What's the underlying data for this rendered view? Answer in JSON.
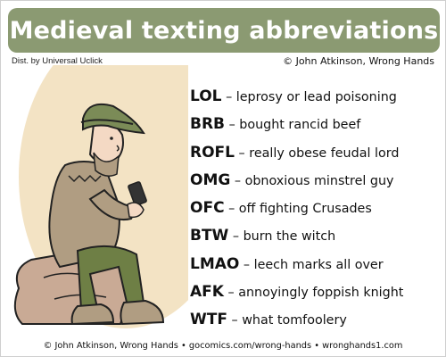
{
  "title": "Medieval texting abbreviations",
  "distribution": "Dist. by Universal Uclick",
  "copyright": "© John Atkinson, Wrong Hands",
  "abbreviations": [
    {
      "abbr": "LOL",
      "meaning": "leprosy or lead poisoning"
    },
    {
      "abbr": "BRB",
      "meaning": "bought rancid beef"
    },
    {
      "abbr": "ROFL",
      "meaning": "really obese feudal lord"
    },
    {
      "abbr": "OMG",
      "meaning": "obnoxious minstrel guy"
    },
    {
      "abbr": "OFC",
      "meaning": "off fighting Crusades"
    },
    {
      "abbr": "BTW",
      "meaning": "burn the witch"
    },
    {
      "abbr": "LMAO",
      "meaning": "leech marks all over"
    },
    {
      "abbr": "AFK",
      "meaning": "annoyingly foppish knight"
    },
    {
      "abbr": "WTF",
      "meaning": "what tomfoolery"
    }
  ],
  "separator": "–",
  "footer": "© John Atkinson, Wrong Hands • gocomics.com/wrong-hands • wronghands1.com",
  "colors": {
    "banner": "#8b9a72",
    "halo": "#f3e3c4",
    "hat": "#7b8b57",
    "cloak": "#b09d82",
    "legs": "#6e7f45",
    "rock": "#c9aa95",
    "skin": "#f4d9c4",
    "phone": "#333333"
  }
}
